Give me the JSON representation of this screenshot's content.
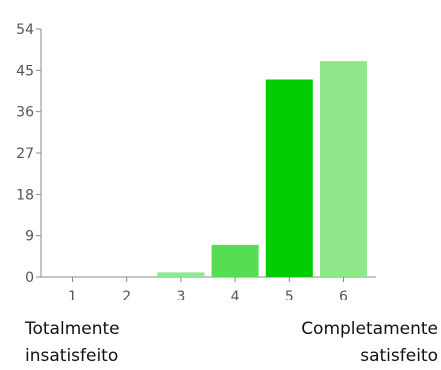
{
  "chart_data": {
    "type": "bar",
    "categories": [
      "1",
      "2",
      "3",
      "4",
      "5",
      "6"
    ],
    "values": [
      0,
      0,
      1,
      7,
      43,
      47
    ],
    "yticks": [
      "0",
      "9",
      "18",
      "27",
      "36",
      "45",
      "54"
    ],
    "ylim": [
      0,
      54
    ],
    "grid": false,
    "colors": [
      "#8ee88a",
      "#6fd96b",
      "#8ee88a",
      "#56dd52",
      "#00cc00",
      "#8ee88a"
    ]
  },
  "captions": {
    "left_line1": "Totalmente",
    "left_line2": "insatisfeito",
    "right_line1": "Completamente",
    "right_line2": "satisfeito"
  },
  "axis_color": "#888888"
}
